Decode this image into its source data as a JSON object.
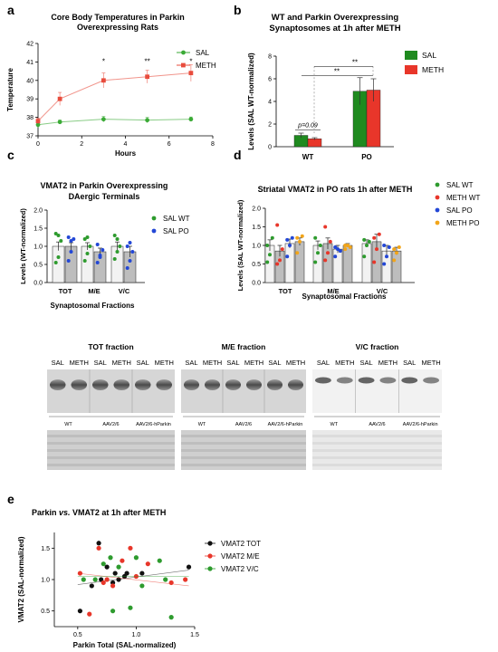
{
  "panel_labels": {
    "a": "a",
    "b": "b",
    "c": "c",
    "d": "d",
    "e": "e"
  },
  "chart_data": [
    {
      "id": "a",
      "type": "line",
      "title": "Core Body Temperatures in Parkin Overexpressing Rats",
      "title_lines": [
        "Core Body Temperatures in Parkin",
        "Overexpressing Rats"
      ],
      "xlabel": "Hours",
      "ylabel": "Temperature",
      "xlim": [
        0,
        8
      ],
      "ylim": [
        37,
        42
      ],
      "xticks": [
        "0",
        "2",
        "4",
        "6",
        "8"
      ],
      "yticks": [
        "37",
        "38",
        "39",
        "40",
        "41",
        "42"
      ],
      "legend_position": "top-right",
      "series": [
        {
          "name": "SAL",
          "color": "#3aaa35",
          "x": [
            0,
            1,
            3,
            5,
            7
          ],
          "y": [
            37.6,
            37.75,
            37.9,
            37.85,
            37.9
          ],
          "err": [
            0.15,
            0.1,
            0.15,
            0.15,
            0.12
          ]
        },
        {
          "name": "METH",
          "color": "#e84c3d",
          "x": [
            0,
            1,
            3,
            5,
            7
          ],
          "y": [
            37.8,
            39.0,
            40.0,
            40.2,
            40.4
          ],
          "err": [
            0.15,
            0.35,
            0.4,
            0.35,
            0.45
          ]
        }
      ],
      "annotations": [
        {
          "x": 3,
          "text": "*"
        },
        {
          "x": 5,
          "text": "**"
        },
        {
          "x": 7,
          "text": "*"
        }
      ]
    },
    {
      "id": "b",
      "type": "bar",
      "title": "WT and Parkin Overexpressing Synaptosomes at 1h after METH",
      "title_lines": [
        "WT and Parkin  Overexpressing",
        "Synaptosomes at 1h after METH"
      ],
      "ylabel": "Levels (SAL WT-normalized)",
      "categories": [
        "WT",
        "PO"
      ],
      "ylim": [
        0,
        8
      ],
      "yticks": [
        "0",
        "2",
        "4",
        "6",
        "8"
      ],
      "legend_position": "top-right",
      "series": [
        {
          "name": "SAL",
          "color": "#1f8a1f",
          "values": [
            1.0,
            4.9
          ],
          "err": [
            0.2,
            1.2
          ]
        },
        {
          "name": "METH",
          "color": "#e8362a",
          "values": [
            0.7,
            5.0
          ],
          "err": [
            0.1,
            1.0
          ]
        }
      ],
      "annotations": [
        {
          "text": "p=0.09"
        },
        {
          "text": "**"
        },
        {
          "text": "**"
        }
      ]
    },
    {
      "id": "c",
      "type": "bar",
      "title": "VMAT2 in Parkin Overexpressing DAergic Terminals",
      "title_lines": [
        "VMAT2 in Parkin Overexpressing",
        "DAergic Terminals"
      ],
      "xlabel": "Synaptosomal Fractions",
      "ylabel": "Levels (WT-normalized)",
      "categories": [
        "TOT",
        "M/E",
        "V/C"
      ],
      "ylim": [
        0,
        2.0
      ],
      "yticks": [
        "0.0",
        "0.5",
        "1.0",
        "1.5",
        "2.0"
      ],
      "legend_position": "top-right",
      "series": [
        {
          "name": "SAL WT",
          "color": "#2e9b2e",
          "values": [
            1.0,
            1.0,
            1.0
          ],
          "err": [
            0.12,
            0.1,
            0.12
          ],
          "points": [
            [
              0.55,
              0.7,
              1.15,
              1.35,
              1.3
            ],
            [
              0.6,
              0.8,
              1.0,
              1.2,
              1.25
            ],
            [
              0.65,
              0.85,
              1.0,
              1.3,
              1.2
            ]
          ]
        },
        {
          "name": "SAL PO",
          "color": "#2347d6",
          "values": [
            1.0,
            0.85,
            0.85
          ],
          "err": [
            0.1,
            0.1,
            0.15
          ],
          "points": [
            [
              0.6,
              0.85,
              1.2,
              1.25,
              1.15
            ],
            [
              0.55,
              0.7,
              0.9,
              1.05,
              0.75
            ],
            [
              0.4,
              0.6,
              0.85,
              1.0,
              1.1
            ]
          ]
        }
      ]
    },
    {
      "id": "d",
      "type": "bar",
      "title": "Striatal VMAT2 in PO rats 1h after METH",
      "xlabel": "Synaptosomal Fractions",
      "ylabel": "Levels (SAL WT-normalized)",
      "categories": [
        "TOT",
        "M/E",
        "V/C"
      ],
      "ylim": [
        0,
        2.0
      ],
      "yticks": [
        "0.0",
        "0.5",
        "1.0",
        "1.5",
        "2.0"
      ],
      "legend_position": "top-right",
      "series": [
        {
          "name": "SAL WT",
          "color": "#2e9b2e",
          "values": [
            1.0,
            1.0,
            1.05
          ],
          "err": [
            0.15,
            0.12,
            0.1
          ],
          "points": [
            [
              0.55,
              0.75,
              1.2,
              1.0
            ],
            [
              0.55,
              0.8,
              1.0,
              1.2
            ],
            [
              0.7,
              1.0,
              1.1,
              1.15
            ]
          ]
        },
        {
          "name": "METH WT",
          "color": "#e8362a",
          "values": [
            0.85,
            1.05,
            1.1
          ],
          "err": [
            0.15,
            0.15,
            0.2
          ],
          "points": [
            [
              0.5,
              0.6,
              0.9,
              1.55
            ],
            [
              0.6,
              0.8,
              1.1,
              1.5
            ],
            [
              0.55,
              0.9,
              1.3,
              1.2
            ]
          ]
        },
        {
          "name": "SAL PO",
          "color": "#2347d6",
          "values": [
            1.05,
            0.9,
            0.85
          ],
          "err": [
            0.12,
            0.1,
            0.15
          ],
          "points": [
            [
              0.7,
              1.0,
              1.2,
              1.15
            ],
            [
              0.7,
              0.9,
              0.85,
              0.95
            ],
            [
              0.5,
              0.7,
              0.95,
              1.0
            ]
          ]
        },
        {
          "name": "METH PO",
          "color": "#f2a51a",
          "values": [
            1.1,
            1.0,
            0.85
          ],
          "err": [
            0.1,
            0.05,
            0.1
          ],
          "points": [
            [
              0.8,
              1.1,
              1.25,
              1.2
            ],
            [
              0.9,
              1.0,
              0.95,
              1.0
            ],
            [
              0.6,
              0.8,
              0.95,
              0.9
            ]
          ]
        }
      ]
    },
    {
      "id": "e",
      "type": "scatter",
      "title": "Parkin vs. VMAT2 at 1h after METH",
      "title_parts": [
        "Parkin ",
        "vs.",
        " VMAT2 at 1h after METH"
      ],
      "xlabel": "Parkin Total (SAL-normalized)",
      "ylabel": "VMAT2 (SAL-normalized)",
      "xlim": [
        0.3,
        1.5
      ],
      "ylim": [
        0.25,
        1.75
      ],
      "xticks": [
        0.5,
        1.0,
        1.5
      ],
      "xtick_labels": [
        "0.5",
        "1.0",
        "1.5"
      ],
      "yticks": [
        0.5,
        1.0,
        1.5
      ],
      "ytick_labels": [
        "0.5",
        "1.0",
        "1.5"
      ],
      "legend_position": "right",
      "series": [
        {
          "name": "VMAT2 TOT",
          "color": "#111111",
          "x": [
            0.52,
            0.68,
            0.7,
            0.75,
            0.8,
            0.82,
            0.9,
            0.92,
            1.05,
            1.45,
            0.62,
            0.85
          ],
          "y": [
            0.5,
            1.58,
            1.0,
            1.2,
            0.95,
            1.1,
            1.05,
            1.1,
            1.1,
            1.2,
            0.9,
            1.0
          ],
          "fit": [
            [
              0.5,
              0.92
            ],
            [
              1.45,
              1.15
            ]
          ]
        },
        {
          "name": "VMAT2 M/E",
          "color": "#e8362a",
          "x": [
            0.52,
            0.6,
            0.68,
            0.72,
            0.8,
            0.88,
            0.95,
            1.0,
            1.1,
            1.3,
            1.42,
            0.75
          ],
          "y": [
            1.1,
            0.45,
            1.5,
            0.95,
            0.9,
            1.3,
            1.5,
            1.05,
            1.25,
            0.95,
            1.0,
            1.0
          ],
          "fit": [
            [
              0.5,
              1.1
            ],
            [
              1.45,
              0.9
            ]
          ]
        },
        {
          "name": "VMAT2 V/C",
          "color": "#2e9b2e",
          "x": [
            0.55,
            0.65,
            0.78,
            0.8,
            0.85,
            0.95,
            1.0,
            1.05,
            1.2,
            1.25,
            1.3,
            0.72
          ],
          "y": [
            1.0,
            1.0,
            1.35,
            0.5,
            1.2,
            0.55,
            1.35,
            0.9,
            1.3,
            1.0,
            0.4,
            1.25
          ],
          "fit": [
            [
              0.5,
              1.05
            ],
            [
              1.45,
              1.05
            ]
          ]
        }
      ]
    }
  ],
  "blots": {
    "panels": [
      {
        "title": "TOT fraction",
        "lanes": [
          "SAL",
          "METH",
          "SAL",
          "METH",
          "SAL",
          "METH"
        ],
        "groups": [
          "WT",
          "AAV2/6",
          "AAV2/6-hParkin"
        ]
      },
      {
        "title": "M/E fraction",
        "lanes": [
          "SAL",
          "METH",
          "SAL",
          "METH",
          "SAL",
          "METH"
        ],
        "groups": [
          "WT",
          "AAV2/6",
          "AAV2/6-hParkin"
        ]
      },
      {
        "title": "V/C fraction",
        "lanes": [
          "SAL",
          "METH",
          "SAL",
          "METH",
          "SAL",
          "METH"
        ],
        "groups": [
          "WT",
          "AAV2/6",
          "AAV2/6-hParkin"
        ]
      }
    ]
  }
}
